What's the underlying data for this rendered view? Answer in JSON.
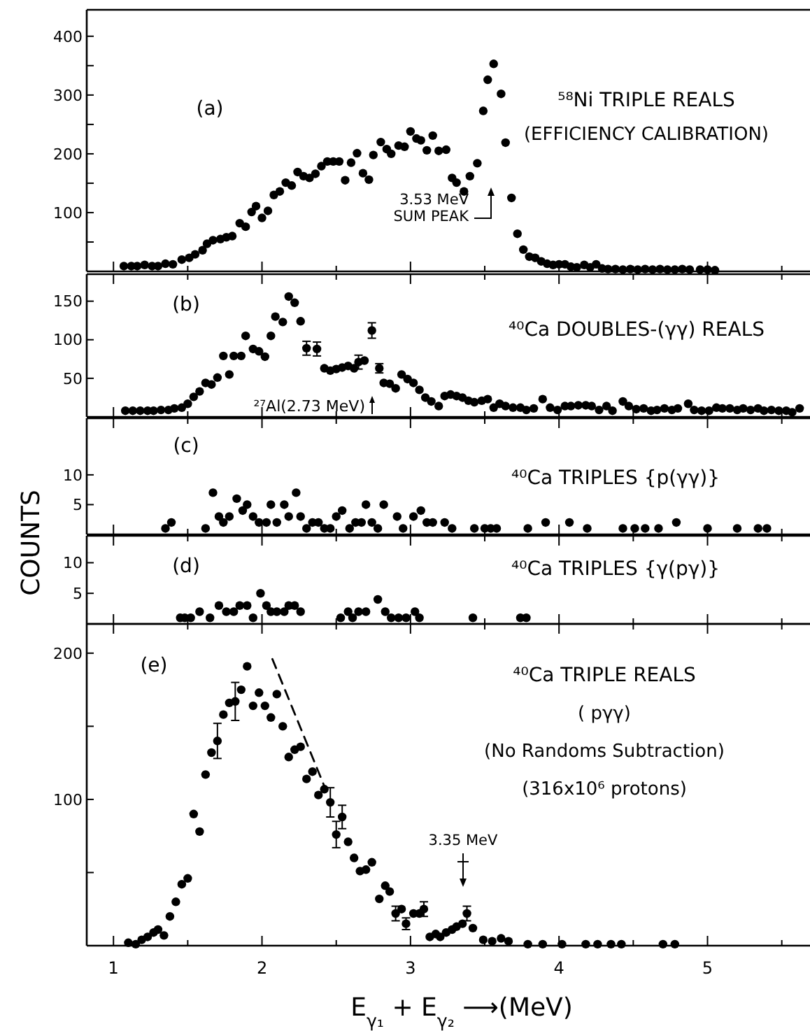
{
  "chart_data": [
    {
      "type": "scatter",
      "title": "⁵⁸Ni TRIPLE REALS",
      "annotations": [
        "(a)",
        "(EFFICIENCY CALIBRATION)",
        "3.53 MeV\nSUM PEAK"
      ],
      "xlim": [
        0.82,
        5.69
      ],
      "xticks": [
        1,
        {
          "value": 1.5,
          "label": null
        },
        2,
        {
          "value": 2.5,
          "label": null
        },
        3,
        {
          "value": 3.5,
          "label": null
        },
        4,
        {
          "value": 4.5,
          "label": null
        },
        5,
        {
          "value": 5.5,
          "label": null
        }
      ],
      "ylim": [
        0,
        445
      ],
      "yticks": [
        {
          "value": 50,
          "label": null
        },
        100,
        {
          "value": 150,
          "label": null
        },
        200,
        {
          "value": 250,
          "label": null
        },
        300,
        {
          "value": 350,
          "label": null
        },
        400
      ],
      "tick_labels": "y",
      "marker": "circle",
      "series": [
        {
          "color": "#000000",
          "x": [
            1.07,
            1.12,
            1.16,
            1.21,
            1.26,
            1.3,
            1.35,
            1.4,
            1.46,
            1.51,
            1.55,
            1.6,
            1.63,
            1.67,
            1.72,
            1.76,
            1.8,
            1.85,
            1.89,
            1.93,
            1.96,
            2.0,
            2.04,
            2.08,
            2.12,
            2.16,
            2.2,
            2.24,
            2.28,
            2.32,
            2.36,
            2.4,
            2.44,
            2.48,
            2.52,
            2.56,
            2.6,
            2.64,
            2.68,
            2.72,
            2.75,
            2.8,
            2.84,
            2.87,
            2.92,
            2.96,
            3.0,
            3.04,
            3.07,
            3.11,
            3.15,
            3.19,
            3.24,
            3.28,
            3.31,
            3.36,
            3.4,
            3.45,
            3.49,
            3.52,
            3.56,
            3.61,
            3.64,
            3.68,
            3.72,
            3.76,
            3.8,
            3.84,
            3.88,
            3.92,
            3.96,
            4.0,
            4.04,
            4.08,
            4.12,
            4.17,
            4.21,
            4.25,
            4.29,
            4.33,
            4.38,
            4.43,
            4.48,
            4.53,
            4.58,
            4.63,
            4.68,
            4.73,
            4.78,
            4.83,
            4.88,
            4.95,
            5.0,
            5.05
          ],
          "values": [
            9,
            9,
            9,
            11,
            9,
            9,
            13,
            12,
            20,
            23,
            29,
            36,
            47,
            53,
            55,
            58,
            60,
            82,
            76,
            101,
            111,
            91,
            103,
            130,
            136,
            151,
            146,
            169,
            162,
            159,
            166,
            179,
            187,
            187,
            187,
            155,
            185,
            201,
            167,
            156,
            198,
            220,
            208,
            200,
            214,
            212,
            238,
            226,
            223,
            206,
            231,
            205,
            207,
            159,
            151,
            136,
            162,
            184,
            273,
            326,
            353,
            302,
            219,
            125,
            64,
            37,
            25,
            23,
            17,
            13,
            11,
            12,
            12,
            8,
            7,
            11,
            7,
            12,
            5,
            4,
            4,
            3,
            4,
            3,
            4,
            3,
            4,
            3,
            3,
            4,
            3,
            3,
            3,
            2
          ]
        }
      ]
    },
    {
      "type": "scatter",
      "title": "⁴⁰Ca DOUBLES-(γγ) REALS",
      "annotations": [
        "(b)",
        "²⁷Al(2.73 MeV)"
      ],
      "xlim": [
        0.82,
        5.69
      ],
      "xticks": [
        1,
        {
          "value": 1.5,
          "label": null
        },
        2,
        {
          "value": 2.5,
          "label": null
        },
        3,
        {
          "value": 3.5,
          "label": null
        },
        4,
        {
          "value": 4.5,
          "label": null
        },
        5,
        {
          "value": 5.5,
          "label": null
        }
      ],
      "ylim": [
        0,
        185
      ],
      "yticks": [
        50,
        100,
        150
      ],
      "tick_labels": "y",
      "marker": "circle",
      "series": [
        {
          "color": "#000000",
          "x": [
            1.08,
            1.13,
            1.18,
            1.23,
            1.27,
            1.32,
            1.37,
            1.41,
            1.46,
            1.5,
            1.54,
            1.58,
            1.62,
            1.66,
            1.7,
            1.74,
            1.78,
            1.81,
            1.86,
            1.89,
            1.94,
            1.98,
            2.02,
            2.06,
            2.09,
            2.14,
            2.18,
            2.22,
            2.26,
            2.3,
            2.37,
            2.42,
            2.46,
            2.5,
            2.54,
            2.58,
            2.62,
            2.65,
            2.69,
            2.74,
            2.79,
            2.82,
            2.86,
            2.9,
            2.94,
            2.98,
            3.02,
            3.06,
            3.1,
            3.14,
            3.19,
            3.23,
            3.27,
            3.31,
            3.35,
            3.39,
            3.43,
            3.48,
            3.52,
            3.56,
            3.6,
            3.64,
            3.69,
            3.74,
            3.78,
            3.83,
            3.89,
            3.94,
            3.99,
            4.04,
            4.08,
            4.13,
            4.18,
            4.22,
            4.27,
            4.32,
            4.36,
            4.43,
            4.47,
            4.52,
            4.57,
            4.62,
            4.66,
            4.71,
            4.76,
            4.8,
            4.87,
            4.91,
            4.96,
            5.01,
            5.06,
            5.1,
            5.15,
            5.2,
            5.24,
            5.29,
            5.34,
            5.38,
            5.43,
            5.48,
            5.53,
            5.57,
            5.62
          ],
          "values": [
            8,
            8,
            8,
            8,
            8,
            9,
            9,
            11,
            12,
            17,
            26,
            33,
            44,
            42,
            51,
            79,
            55,
            79,
            79,
            105,
            88,
            85,
            78,
            105,
            130,
            123,
            156,
            148,
            124,
            89,
            88,
            63,
            60,
            62,
            64,
            66,
            63,
            71,
            73,
            112,
            63,
            44,
            43,
            37,
            55,
            49,
            44,
            35,
            25,
            20,
            14,
            27,
            29,
            27,
            25,
            21,
            19,
            21,
            23,
            12,
            17,
            14,
            12,
            12,
            9,
            11,
            23,
            12,
            9,
            14,
            14,
            15,
            15,
            14,
            9,
            14,
            8,
            20,
            14,
            10,
            11,
            8,
            9,
            11,
            9,
            11,
            17,
            9,
            8,
            8,
            12,
            11,
            11,
            9,
            11,
            9,
            11,
            8,
            9,
            8,
            8,
            6,
            11
          ],
          "errors": [
            null,
            null,
            null,
            null,
            null,
            null,
            null,
            null,
            null,
            null,
            null,
            null,
            null,
            null,
            null,
            null,
            null,
            null,
            null,
            null,
            null,
            null,
            null,
            null,
            null,
            null,
            null,
            null,
            null,
            9,
            9,
            null,
            null,
            null,
            null,
            null,
            null,
            9,
            null,
            10,
            6,
            null,
            null,
            null,
            null,
            null,
            null,
            null,
            null,
            null,
            null,
            null,
            null,
            null,
            null,
            null,
            null,
            null,
            null,
            null,
            null,
            null,
            null,
            null,
            null,
            null,
            null,
            null,
            null,
            null,
            null,
            null,
            null,
            null,
            null,
            null,
            null,
            null,
            null,
            null,
            null,
            null,
            null,
            null,
            null,
            null,
            null,
            null,
            null,
            null,
            null,
            null,
            null,
            null,
            null,
            null,
            null,
            null,
            null,
            null,
            null,
            null,
            null
          ]
        }
      ]
    },
    {
      "type": "scatter",
      "title": "⁴⁰Ca TRIPLES  {p(γγ)}",
      "ylabel": "COUNTS",
      "annotations": [
        "(c)"
      ],
      "xlim": [
        0.82,
        5.69
      ],
      "xticks": [
        1,
        {
          "value": 1.5,
          "label": null
        },
        2,
        {
          "value": 2.5,
          "label": null
        },
        3,
        {
          "value": 3.5,
          "label": null
        },
        4,
        {
          "value": 4.5,
          "label": null
        },
        5,
        {
          "value": 5.5,
          "label": null
        }
      ],
      "ylim": [
        0,
        19.5
      ],
      "yticks": [
        5,
        10
      ],
      "tick_labels": "y",
      "marker": "circle",
      "series": [
        {
          "color": "#000000",
          "x": [
            1.35,
            1.39,
            1.62,
            1.67,
            1.71,
            1.74,
            1.78,
            1.83,
            1.87,
            1.9,
            1.94,
            1.98,
            2.03,
            2.06,
            2.1,
            2.15,
            2.18,
            2.23,
            2.26,
            2.3,
            2.34,
            2.38,
            2.42,
            2.46,
            2.5,
            2.54,
            2.59,
            2.63,
            2.67,
            2.7,
            2.74,
            2.78,
            2.82,
            2.91,
            2.95,
            3.02,
            3.07,
            3.11,
            3.15,
            3.23,
            3.28,
            3.43,
            3.5,
            3.54,
            3.58,
            3.79,
            3.91,
            4.07,
            4.19,
            4.43,
            4.51,
            4.58,
            4.67,
            4.79,
            5.0,
            5.2,
            5.34,
            5.4
          ],
          "values": [
            1,
            2,
            1,
            7,
            3,
            2,
            3,
            6,
            4,
            5,
            3,
            2,
            2,
            5,
            2,
            5,
            3,
            7,
            3,
            1,
            2,
            2,
            1,
            1,
            3,
            4,
            1,
            2,
            2,
            5,
            2,
            1,
            5,
            3,
            1,
            3,
            4,
            2,
            2,
            2,
            1,
            1,
            1,
            1,
            1,
            1,
            2,
            2,
            1,
            1,
            1,
            1,
            1,
            2,
            1,
            1,
            1,
            1
          ]
        }
      ]
    },
    {
      "type": "scatter",
      "title": "⁴⁰Ca TRIPLES  {γ(pγ)}",
      "annotations": [
        "(d)"
      ],
      "xlim": [
        0.82,
        5.69
      ],
      "xticks": [
        1,
        {
          "value": 1.5,
          "label": null
        },
        2,
        {
          "value": 2.5,
          "label": null
        },
        3,
        {
          "value": 3.5,
          "label": null
        },
        4,
        {
          "value": 4.5,
          "label": null
        },
        5,
        {
          "value": 5.5,
          "label": null
        }
      ],
      "ylim": [
        0,
        14.4
      ],
      "yticks": [
        5,
        10
      ],
      "tick_labels": "y",
      "marker": "circle",
      "series": [
        {
          "color": "#000000",
          "x": [
            1.45,
            1.48,
            1.52,
            1.58,
            1.65,
            1.71,
            1.76,
            1.81,
            1.85,
            1.9,
            1.94,
            1.99,
            2.03,
            2.06,
            2.1,
            2.15,
            2.18,
            2.22,
            2.26,
            2.53,
            2.58,
            2.61,
            2.65,
            2.7,
            2.78,
            2.83,
            2.87,
            2.92,
            2.97,
            3.03,
            3.06,
            3.42,
            3.74,
            3.78
          ],
          "values": [
            1,
            1,
            1,
            2,
            1,
            3,
            2,
            2,
            3,
            3,
            1,
            5,
            3,
            2,
            2,
            2,
            3,
            3,
            2,
            1,
            2,
            1,
            2,
            2,
            4,
            2,
            1,
            1,
            1,
            2,
            1,
            1,
            1,
            1
          ]
        }
      ]
    },
    {
      "type": "scatter",
      "title": "⁴⁰Ca TRIPLE REALS",
      "xlabel": "E$_{γ₁}$ + E$_{γ₂}$ ⟶(MeV)",
      "annotations": [
        "(e)",
        "( pγγ)",
        "(No Randoms Subtraction)",
        "(316x10⁶ protons)",
        "3.35 MeV"
      ],
      "xlim": [
        0.82,
        5.69
      ],
      "xticks": [
        1,
        {
          "value": 1.5,
          "label": null
        },
        2,
        {
          "value": 2.5,
          "label": null
        },
        3,
        {
          "value": 3.5,
          "label": null
        },
        4,
        {
          "value": 4.5,
          "label": null
        },
        5,
        {
          "value": 5.5,
          "label": null
        }
      ],
      "ylim": [
        0,
        220
      ],
      "yticks": [
        {
          "value": 50,
          "label": null
        },
        100,
        {
          "value": 150,
          "label": null
        },
        200
      ],
      "marker": "circle",
      "series": [
        {
          "color": "#000000",
          "x": [
            1.1,
            1.15,
            1.19,
            1.23,
            1.27,
            1.3,
            1.34,
            1.38,
            1.42,
            1.46,
            1.5,
            1.54,
            1.58,
            1.62,
            1.66,
            1.7,
            1.74,
            1.78,
            1.82,
            1.86,
            1.9,
            1.94,
            1.98,
            2.02,
            2.06,
            2.1,
            2.14,
            2.18,
            2.22,
            2.26,
            2.3,
            2.34,
            2.38,
            2.42,
            2.46,
            2.5,
            2.54,
            2.58,
            2.62,
            2.66,
            2.7,
            2.74,
            2.79,
            2.83,
            2.86,
            2.9,
            2.94,
            2.97,
            3.02,
            3.06,
            3.09,
            3.13,
            3.17,
            3.2,
            3.24,
            3.28,
            3.31,
            3.35,
            3.38,
            3.42,
            3.49,
            3.55,
            3.61,
            3.66,
            3.79,
            3.89,
            4.02,
            4.18,
            4.26,
            4.35,
            4.42,
            4.7,
            4.78
          ],
          "values": [
            2,
            1,
            4,
            6,
            9,
            11,
            7,
            20,
            30,
            42,
            46,
            90,
            78,
            117,
            132,
            140,
            158,
            166,
            167,
            175,
            191,
            164,
            173,
            164,
            156,
            172,
            150,
            129,
            134,
            136,
            114,
            119,
            103,
            107,
            98,
            76,
            88,
            71,
            60,
            51,
            52,
            57,
            32,
            41,
            37,
            22,
            25,
            15,
            22,
            22,
            25,
            6,
            8,
            6,
            9,
            11,
            13,
            15,
            22,
            12,
            4,
            3,
            5,
            3,
            1,
            1,
            1,
            1,
            1,
            1,
            1,
            1,
            1
          ],
          "errors": [
            null,
            null,
            null,
            null,
            null,
            null,
            null,
            null,
            null,
            null,
            null,
            null,
            null,
            null,
            null,
            12,
            null,
            null,
            13,
            null,
            null,
            null,
            null,
            null,
            null,
            null,
            null,
            null,
            null,
            null,
            null,
            null,
            null,
            null,
            10,
            9,
            8,
            null,
            null,
            null,
            null,
            null,
            null,
            null,
            null,
            5,
            null,
            4,
            null,
            null,
            5,
            null,
            null,
            null,
            null,
            null,
            null,
            null,
            5,
            null,
            null,
            null,
            null,
            null,
            null,
            null,
            null,
            null,
            null,
            null,
            null,
            null,
            null
          ]
        },
        {
          "type": "line",
          "color": "#000000",
          "line_style": "dashed",
          "marker": "none",
          "x": [
            2.07,
            2.42
          ],
          "values": [
            196,
            109
          ]
        }
      ]
    }
  ]
}
